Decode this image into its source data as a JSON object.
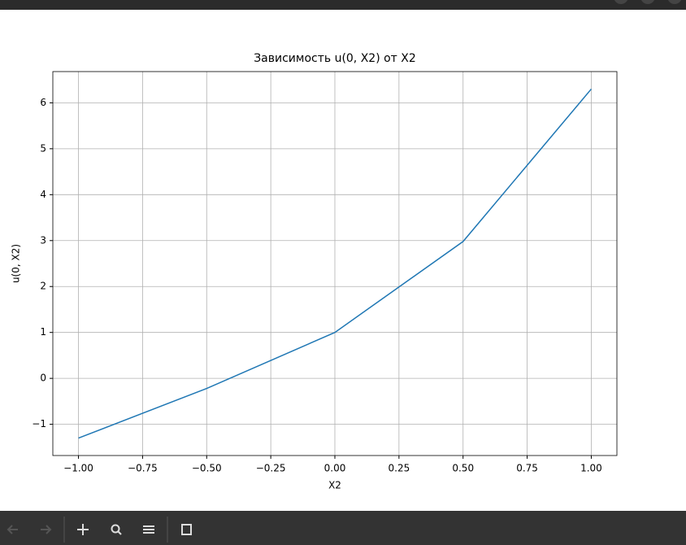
{
  "chart_data": {
    "type": "line",
    "title": "Зависимость u(0, X2) от X2",
    "x_label": "X2",
    "y_label": "u(0, X2)",
    "x": [
      -1,
      -0.5,
      0,
      0.5,
      1
    ],
    "series": [
      {
        "color": "#1f77b4",
        "values": [
          -1.3,
          -0.22,
          1,
          2.98,
          6.3
        ]
      }
    ],
    "xlim": [
      -1.1,
      1.1
    ],
    "ylim": [
      -1.68,
      6.68
    ],
    "xticks": [
      {
        "value": -1,
        "label": "−1.00"
      },
      {
        "value": -0.75,
        "label": "−0.75"
      },
      {
        "value": -0.5,
        "label": "−0.50"
      },
      {
        "value": -0.25,
        "label": "−0.25"
      },
      {
        "value": 0,
        "label": "0.00"
      },
      {
        "value": 0.25,
        "label": "0.25"
      },
      {
        "value": 0.5,
        "label": "0.50"
      },
      {
        "value": 0.75,
        "label": "0.75"
      },
      {
        "value": 1,
        "label": "1.00"
      }
    ],
    "yticks": [
      {
        "value": -1,
        "label": "−1"
      },
      0,
      1,
      2,
      3,
      4,
      5,
      6
    ],
    "grid": true
  }
}
